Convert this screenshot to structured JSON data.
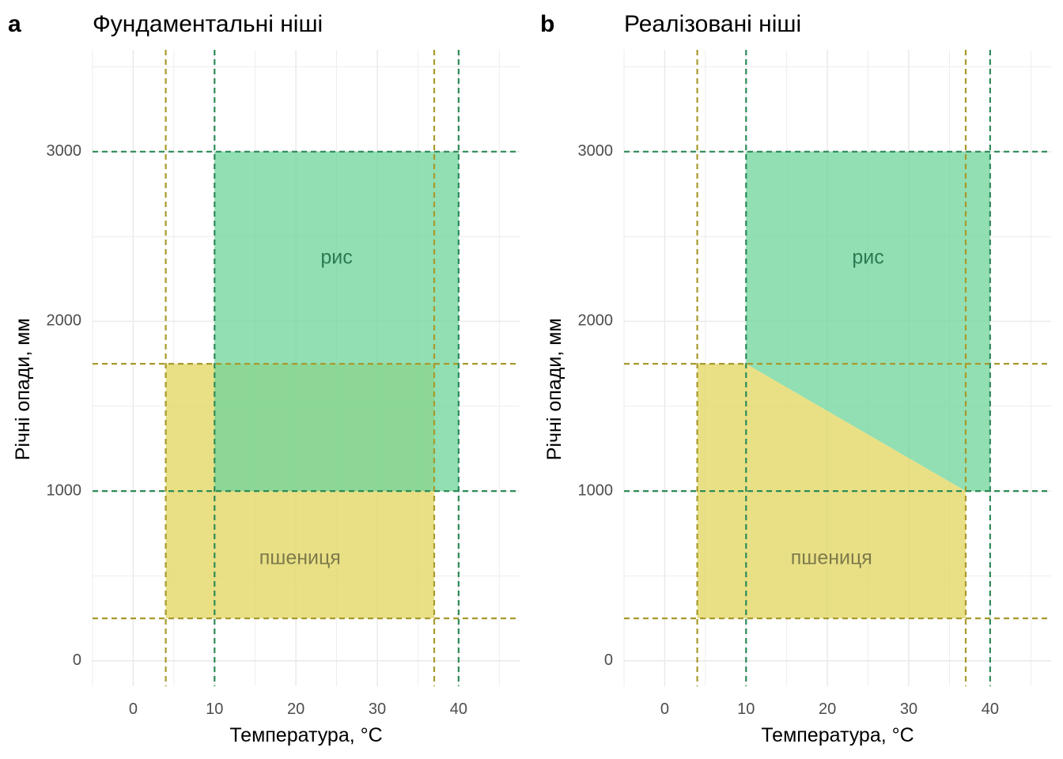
{
  "colors": {
    "rice": "#6cd49a",
    "rice_text": "#2b7a52",
    "rice_line": "#2e8b57",
    "wheat": "#e2d65e",
    "wheat_text": "#7d7a4a",
    "wheat_line": "#a89a2e",
    "grid": "#ebebeb"
  },
  "chart_data": [
    {
      "type": "area",
      "panel_letter": "a",
      "title": "Фундаментальні ніші",
      "xlabel": "Температура, °C",
      "ylabel": "Річні опади, мм",
      "xlim": [
        -5,
        47.5
      ],
      "ylim": [
        -150,
        3600
      ],
      "xticks": [
        0,
        10,
        20,
        30,
        40
      ],
      "yticks": [
        0,
        1000,
        2000,
        3000
      ],
      "grid": true,
      "series": [
        {
          "name": "пшениця",
          "key": "wheat",
          "polygon": [
            [
              4,
              250
            ],
            [
              37,
              250
            ],
            [
              37,
              1750
            ],
            [
              4,
              1750
            ]
          ],
          "label_pos": [
            20.5,
            600
          ],
          "bounds": {
            "x": [
              4,
              37
            ],
            "y": [
              250,
              1750
            ]
          }
        },
        {
          "name": "рис",
          "key": "rice",
          "polygon": [
            [
              10,
              1000
            ],
            [
              40,
              1000
            ],
            [
              40,
              3000
            ],
            [
              10,
              3000
            ]
          ],
          "label_pos": [
            25,
            2370
          ],
          "bounds": {
            "x": [
              10,
              40
            ],
            "y": [
              1000,
              3000
            ]
          }
        }
      ]
    },
    {
      "type": "area",
      "panel_letter": "b",
      "title": "Реалізовані ніші",
      "xlabel": "Температура, °C",
      "ylabel": "Річні опади, мм",
      "xlim": [
        -5,
        47.5
      ],
      "ylim": [
        -150,
        3600
      ],
      "xticks": [
        0,
        10,
        20,
        30,
        40
      ],
      "yticks": [
        0,
        1000,
        2000,
        3000
      ],
      "grid": true,
      "series": [
        {
          "name": "пшениця",
          "key": "wheat",
          "polygon": [
            [
              4,
              250
            ],
            [
              37,
              250
            ],
            [
              37,
              1000
            ],
            [
              10,
              1750
            ],
            [
              4,
              1750
            ]
          ],
          "label_pos": [
            20.5,
            600
          ],
          "bounds": {
            "x": [
              4,
              37
            ],
            "y": [
              250,
              1750
            ]
          }
        },
        {
          "name": "рис",
          "key": "rice",
          "polygon": [
            [
              10,
              1750
            ],
            [
              37,
              1000
            ],
            [
              40,
              1000
            ],
            [
              40,
              3000
            ],
            [
              10,
              3000
            ]
          ],
          "label_pos": [
            25,
            2370
          ],
          "bounds": {
            "x": [
              10,
              40
            ],
            "y": [
              1000,
              3000
            ]
          }
        }
      ]
    }
  ]
}
